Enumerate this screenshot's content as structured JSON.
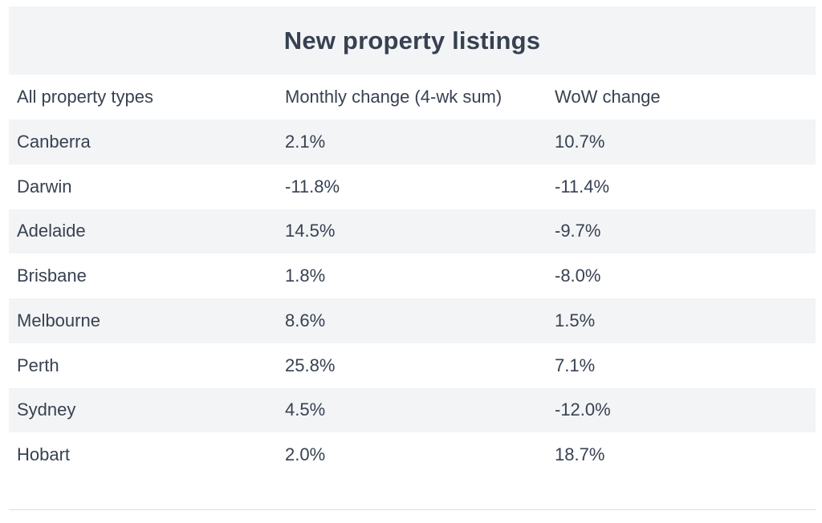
{
  "title": "New property listings",
  "headers": [
    "All property types",
    "Monthly change (4-wk sum)",
    "WoW change"
  ],
  "rows": [
    {
      "city": "Canberra",
      "monthly": "2.1%",
      "wow": "10.7%"
    },
    {
      "city": "Darwin",
      "monthly": "-11.8%",
      "wow": "-11.4%"
    },
    {
      "city": "Adelaide",
      "monthly": "14.5%",
      "wow": "-9.7%"
    },
    {
      "city": "Brisbane",
      "monthly": "1.8%",
      "wow": "-8.0%"
    },
    {
      "city": "Melbourne",
      "monthly": "8.6%",
      "wow": "1.5%"
    },
    {
      "city": "Perth",
      "monthly": "25.8%",
      "wow": "7.1%"
    },
    {
      "city": "Sydney",
      "monthly": "4.5%",
      "wow": "-12.0%"
    },
    {
      "city": "Hobart",
      "monthly": "2.0%",
      "wow": "18.7%"
    }
  ],
  "colors": {
    "text": "#374151",
    "stripe": "#f3f4f6",
    "rule": "#d9dde3"
  }
}
